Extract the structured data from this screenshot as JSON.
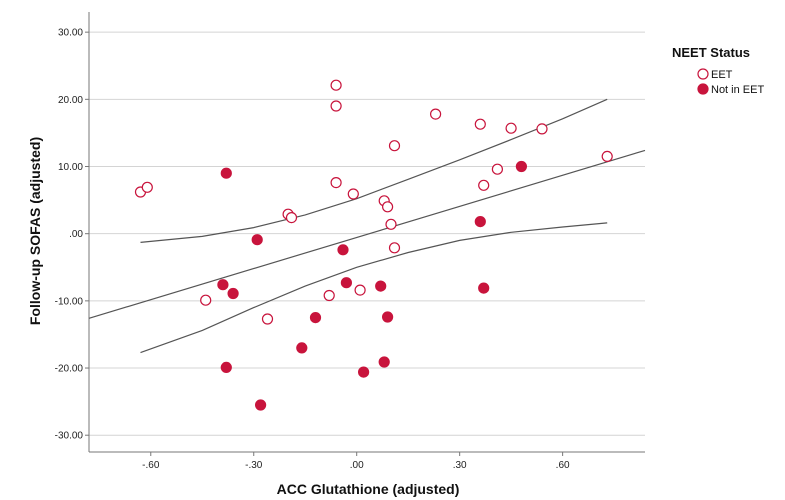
{
  "chart_data": {
    "type": "scatter",
    "xlabel": "ACC Glutathione (adjusted)",
    "ylabel": "Follow-up SOFAS (adjusted)",
    "xlim": [
      -0.78,
      0.84
    ],
    "ylim": [
      -32.5,
      33
    ],
    "x_ticks": [
      -0.6,
      -0.3,
      0.0,
      0.3,
      0.6
    ],
    "x_tick_labels": [
      "-.60",
      "-.30",
      ".00",
      ".30",
      ".60"
    ],
    "y_ticks": [
      -30,
      -20,
      -10,
      0,
      10,
      20,
      30
    ],
    "y_tick_labels": [
      "-30.00",
      "-20.00",
      "-10.00",
      ".00",
      "10.00",
      "20.00",
      "30.00"
    ],
    "grid": "horizontal",
    "legend": {
      "title": "NEET Status",
      "placement": "right",
      "entries": [
        "EET",
        "Not in EET"
      ]
    },
    "colors": {
      "point": "#c8143c",
      "fit": "#555555",
      "grid": "#d4d4d4",
      "axis": "#777777"
    },
    "series": [
      {
        "name": "EET",
        "marker": "hollow-circle",
        "x": [
          -0.63,
          -0.61,
          -0.44,
          -0.26,
          -0.2,
          -0.19,
          -0.08,
          -0.06,
          -0.06,
          -0.06,
          -0.01,
          0.01,
          0.08,
          0.09,
          0.1,
          0.11,
          0.11,
          0.23,
          0.36,
          0.37,
          0.41,
          0.45,
          0.54,
          0.73
        ],
        "y": [
          6.2,
          6.9,
          -9.9,
          -12.7,
          2.9,
          2.4,
          -9.2,
          22.1,
          19.0,
          7.6,
          5.9,
          -8.4,
          4.9,
          4.0,
          1.4,
          13.1,
          -2.1,
          17.8,
          16.3,
          7.2,
          9.6,
          15.7,
          15.6,
          11.5
        ]
      },
      {
        "name": "Not in EET",
        "marker": "filled-circle",
        "x": [
          -0.39,
          -0.38,
          -0.38,
          -0.36,
          -0.29,
          -0.28,
          -0.16,
          -0.12,
          -0.04,
          -0.03,
          0.02,
          0.07,
          0.08,
          0.09,
          0.36,
          0.37,
          0.48
        ],
        "y": [
          -7.6,
          -19.9,
          9.0,
          -8.9,
          -0.9,
          -25.5,
          -17.0,
          -12.5,
          -2.4,
          -7.3,
          -20.6,
          -7.8,
          -19.1,
          -12.4,
          1.8,
          -8.1,
          10.0
        ]
      }
    ],
    "fit_line": {
      "x": [
        -0.78,
        0.84
      ],
      "y": [
        -12.6,
        12.4
      ]
    },
    "ci_upper": {
      "x": [
        -0.63,
        -0.45,
        -0.3,
        -0.15,
        0.0,
        0.15,
        0.3,
        0.45,
        0.6,
        0.73
      ],
      "y": [
        -1.3,
        -0.4,
        0.9,
        2.8,
        5.2,
        8.1,
        11.0,
        14.0,
        17.1,
        20.0
      ]
    },
    "ci_lower": {
      "x": [
        -0.63,
        -0.45,
        -0.3,
        -0.15,
        0.0,
        0.15,
        0.3,
        0.45,
        0.6,
        0.73
      ],
      "y": [
        -17.7,
        -14.4,
        -11.0,
        -7.8,
        -5.0,
        -2.8,
        -1.0,
        0.2,
        1.0,
        1.6
      ]
    }
  }
}
